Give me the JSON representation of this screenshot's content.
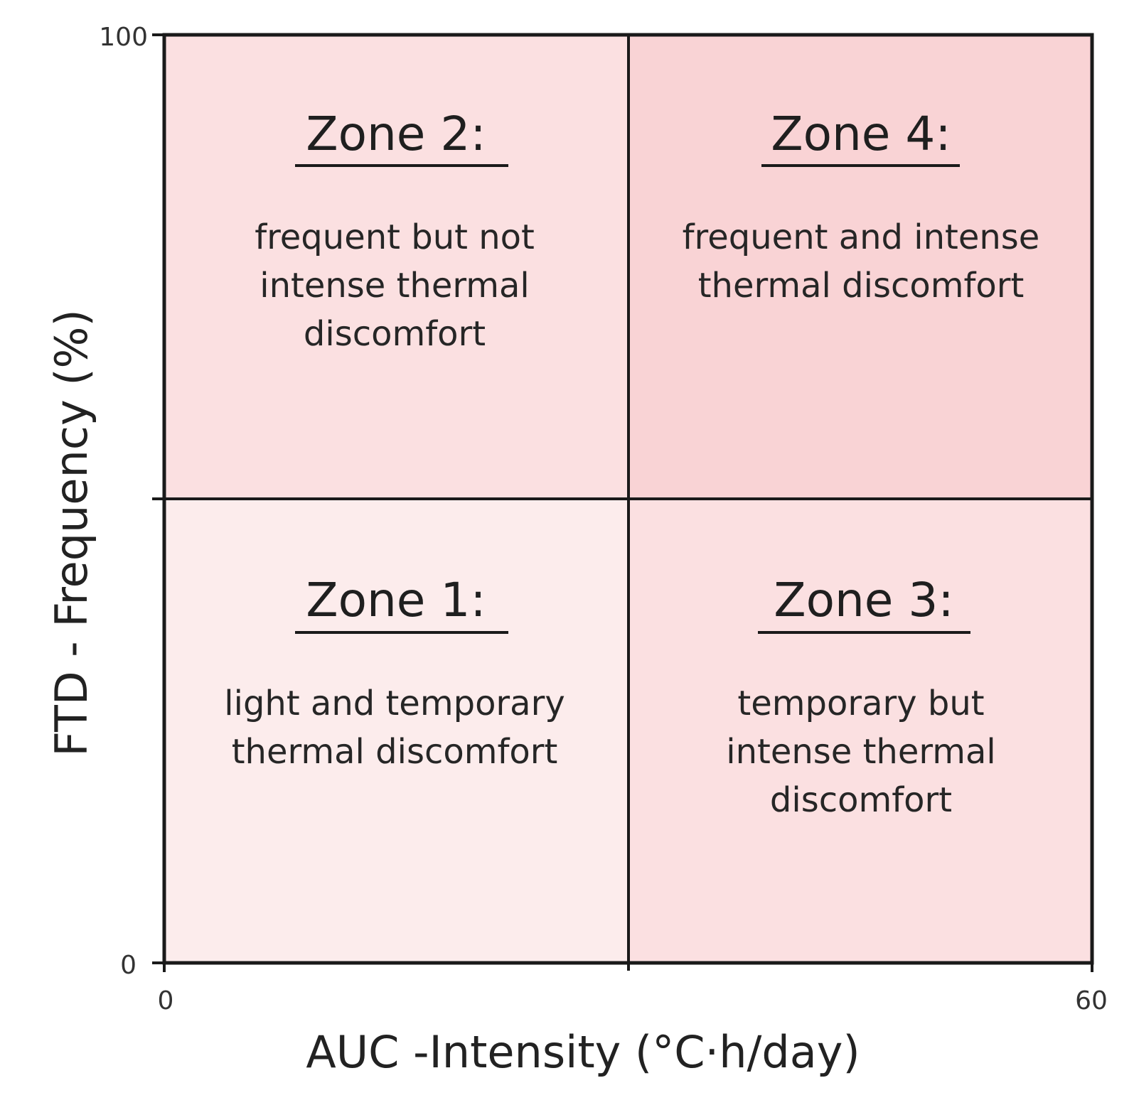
{
  "diagram": {
    "x_axis": {
      "label": "AUC -Intensity (°C·h/day)",
      "min_label": "0",
      "max_label": "60"
    },
    "y_axis": {
      "label": "FTD - Frequency (%)",
      "min_label": "0",
      "max_label": "100"
    },
    "zones": [
      {
        "id": "zone-1",
        "title": "Zone 1:",
        "description": [
          "light and temporary",
          "thermal discomfort"
        ],
        "fill": "#fcecec"
      },
      {
        "id": "zone-2",
        "title": "Zone 2:",
        "description": [
          "frequent but not",
          "intense thermal",
          "discomfort"
        ],
        "fill": "#fbe0e1"
      },
      {
        "id": "zone-3",
        "title": "Zone 3:",
        "description": [
          "temporary but",
          "intense thermal",
          "discomfort"
        ],
        "fill": "#fbe0e1"
      },
      {
        "id": "zone-4",
        "title": "Zone 4:",
        "description": [
          "frequent and intense",
          "thermal discomfort"
        ],
        "fill": "#f9d3d5"
      }
    ],
    "colors": {
      "axis": "#1a1a1a",
      "text": "#222222"
    }
  }
}
